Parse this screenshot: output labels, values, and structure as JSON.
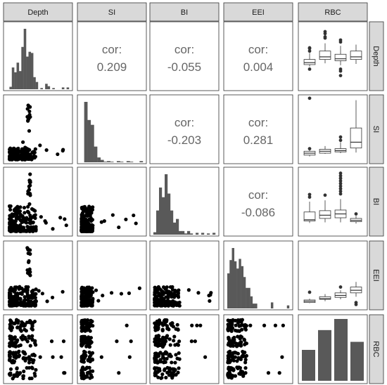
{
  "chart_data": {
    "type": "scatter-matrix",
    "variables": [
      "Depth",
      "SI",
      "BI",
      "EEI",
      "RBC"
    ],
    "correlation_label": "cor:",
    "correlations": [
      {
        "row": "Depth",
        "col": "SI",
        "value": "0.209"
      },
      {
        "row": "Depth",
        "col": "BI",
        "value": "-0.055"
      },
      {
        "row": "Depth",
        "col": "EEI",
        "value": "0.004"
      },
      {
        "row": "SI",
        "col": "BI",
        "value": "-0.203"
      },
      {
        "row": "SI",
        "col": "EEI",
        "value": "0.281"
      },
      {
        "row": "BI",
        "col": "EEI",
        "value": "-0.086"
      }
    ],
    "histograms": {
      "Depth": [
        0,
        0.04,
        0.36,
        0.28,
        0.44,
        0.3,
        0.7,
        1.0,
        0.54,
        0.62,
        0.6,
        0.2,
        0.12,
        0,
        0.02,
        0,
        0.09,
        0.05,
        0,
        0.02,
        0,
        0,
        0,
        0.03,
        0,
        0.03
      ],
      "SI": [
        0,
        1.0,
        0.7,
        0.62,
        0.26,
        0.08,
        0.04,
        0.01,
        0.02,
        0.01,
        0,
        0.02,
        0.01,
        0,
        0.02,
        0.01,
        0,
        0,
        0.02
      ],
      "BI": [
        0.04,
        0.4,
        0.78,
        0.62,
        1.0,
        0.68,
        0.4,
        0.2,
        0.26,
        0.06,
        0.06,
        0.02,
        0.06,
        0.02,
        0,
        0.03,
        0,
        0.03,
        0,
        0.02,
        0,
        0.03
      ],
      "EEI": [
        0.58,
        0.8,
        1.0,
        0.78,
        0.66,
        0.82,
        0.7,
        0.52,
        0.34,
        0.34,
        0.2,
        0.08,
        0.08,
        0,
        0,
        0,
        0,
        0,
        0,
        0.1,
        0,
        0,
        0,
        0,
        0,
        0,
        0.05
      ]
    },
    "rbc_bars": [
      0.5,
      0.82,
      1.0,
      0.63
    ],
    "boxplots": {
      "Depth": [
        {
          "lo": 0.34,
          "q1": 0.37,
          "med": 0.4,
          "q3": 0.45,
          "hi": 0.55,
          "out": [
            0.58,
            0.62,
            0.63,
            0.3
          ]
        },
        {
          "lo": 0.39,
          "q1": 0.45,
          "med": 0.49,
          "q3": 0.58,
          "hi": 0.7,
          "out": [
            0.78,
            0.8,
            0.85,
            0.88
          ]
        },
        {
          "lo": 0.36,
          "q1": 0.43,
          "med": 0.46,
          "q3": 0.53,
          "hi": 0.66,
          "out": [
            0.3,
            0.27,
            0.72,
            0.75,
            0.2
          ]
        },
        {
          "lo": 0.38,
          "q1": 0.45,
          "med": 0.49,
          "q3": 0.58,
          "hi": 0.68,
          "out": []
        }
      ],
      "SI": [
        {
          "lo": 0.08,
          "q1": 0.1,
          "med": 0.13,
          "q3": 0.16,
          "hi": 0.19,
          "out": [
            0.98,
            0.2
          ]
        },
        {
          "lo": 0.12,
          "q1": 0.13,
          "med": 0.16,
          "q3": 0.19,
          "hi": 0.24,
          "out": []
        },
        {
          "lo": 0.13,
          "q1": 0.15,
          "med": 0.17,
          "q3": 0.2,
          "hi": 0.3,
          "out": [
            0.33,
            0.38
          ]
        },
        {
          "lo": 0.14,
          "q1": 0.21,
          "med": 0.3,
          "q3": 0.52,
          "hi": 0.95,
          "out": []
        }
      ],
      "BI": [
        {
          "lo": 0.17,
          "q1": 0.2,
          "med": 0.22,
          "q3": 0.34,
          "hi": 0.5,
          "out": [
            0.57,
            0.61
          ]
        },
        {
          "lo": 0.18,
          "q1": 0.24,
          "med": 0.29,
          "q3": 0.36,
          "hi": 0.52,
          "out": [
            0.6
          ]
        },
        {
          "lo": 0.18,
          "q1": 0.25,
          "med": 0.31,
          "q3": 0.37,
          "hi": 0.54,
          "out": [
            0.62,
            0.66,
            0.7,
            0.74,
            0.78,
            0.82,
            0.86,
            0.9,
            0.94
          ]
        },
        {
          "lo": 0.16,
          "q1": 0.19,
          "med": 0.21,
          "q3": 0.24,
          "hi": 0.28,
          "out": [
            0.31
          ]
        }
      ],
      "EEI": [
        {
          "lo": 0.07,
          "q1": 0.08,
          "med": 0.1,
          "q3": 0.12,
          "hi": 0.14,
          "out": [
            0.24
          ]
        },
        {
          "lo": 0.1,
          "q1": 0.13,
          "med": 0.14,
          "q3": 0.17,
          "hi": 0.21,
          "out": []
        },
        {
          "lo": 0.13,
          "q1": 0.16,
          "med": 0.19,
          "q3": 0.23,
          "hi": 0.27,
          "out": [
            0.32
          ]
        },
        {
          "lo": 0.17,
          "q1": 0.23,
          "med": 0.27,
          "q3": 0.32,
          "hi": 0.4,
          "out": [
            0.08,
            0.05
          ]
        }
      ]
    },
    "colors": {
      "panel_border": "#333333",
      "strip_bg": "#d9d9d9",
      "bar": "#595959",
      "point": "#000000",
      "cor_text": "#666666"
    }
  }
}
